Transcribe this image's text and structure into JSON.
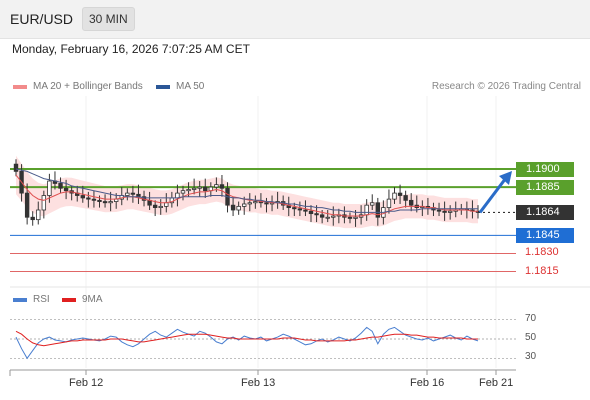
{
  "header": {
    "symbol": "EUR/USD",
    "timeframe": "30 MIN"
  },
  "datetime": "Monday, February 16, 2026 7:07:25 AM CET",
  "legend": [
    {
      "label": "MA 20 + Bollinger Bands",
      "color": "#f28b8b"
    },
    {
      "label": "MA 50",
      "color": "#2b5797"
    }
  ],
  "credit": "Research © 2026 Trading Central",
  "colors": {
    "resistance": "#5aa02c",
    "support": "#1f6ed4",
    "ma20": "#e05050",
    "ma50": "#4a5a8a",
    "band": "#fde0e0",
    "candle": "#333333",
    "arrow": "#2a6cc8"
  },
  "chart_data": [
    {
      "type": "line",
      "title": "",
      "price_range": [
        1.1808,
        1.1924
      ],
      "x_ticks": [
        "Feb 12",
        "Feb 13",
        "Feb 16",
        "Feb 21"
      ],
      "levels": [
        {
          "label": "1.1900",
          "value": 1.19,
          "kind": "resistance"
        },
        {
          "label": "1.1885",
          "value": 1.1885,
          "kind": "resistance"
        },
        {
          "label": "1.1864",
          "value": 1.1864,
          "kind": "last"
        },
        {
          "label": "1.1845",
          "value": 1.1845,
          "kind": "support"
        },
        {
          "label": "1.1830",
          "value": 1.183,
          "kind": "target"
        },
        {
          "label": "1.1815",
          "value": 1.1815,
          "kind": "target"
        }
      ],
      "close": [
        1.1898,
        1.188,
        1.186,
        1.1858,
        1.1866,
        1.1878,
        1.189,
        1.1888,
        1.1884,
        1.1882,
        1.188,
        1.1878,
        1.1876,
        1.1875,
        1.1874,
        1.1873,
        1.1872,
        1.1873,
        1.1875,
        1.1878,
        1.188,
        1.1879,
        1.1877,
        1.1874,
        1.187,
        1.1868,
        1.1869,
        1.1872,
        1.1876,
        1.188,
        1.1882,
        1.1883,
        1.1884,
        1.1885,
        1.1882,
        1.1885,
        1.1887,
        1.1884,
        1.187,
        1.1866,
        1.1869,
        1.1871,
        1.1872,
        1.1873,
        1.1872,
        1.1871,
        1.1872,
        1.1873,
        1.187,
        1.1868,
        1.1867,
        1.1866,
        1.1865,
        1.1863,
        1.1862,
        1.186,
        1.186,
        1.1861,
        1.1862,
        1.186,
        1.1859,
        1.186,
        1.1862,
        1.187,
        1.1872,
        1.186,
        1.1868,
        1.1875,
        1.188,
        1.1878,
        1.1874,
        1.187,
        1.1868,
        1.1869,
        1.1868,
        1.1866,
        1.1865,
        1.1864,
        1.1865,
        1.1866,
        1.1867,
        1.1866,
        1.1865,
        1.1864
      ],
      "series": [
        {
          "name": "MA 20 + Bollinger Bands",
          "values": [
            1.1895,
            1.1889,
            1.1883,
            1.1878,
            1.1875,
            1.1874,
            1.1876,
            1.1878,
            1.188,
            1.1881,
            1.1881,
            1.188,
            1.1879,
            1.1878,
            1.1877,
            1.1876,
            1.1875,
            1.1875,
            1.1875,
            1.1876,
            1.1877,
            1.1877,
            1.1876,
            1.1875,
            1.1874,
            1.1873,
            1.1872,
            1.1872,
            1.1873,
            1.1875,
            1.1877,
            1.1879,
            1.188,
            1.1881,
            1.1881,
            1.1882,
            1.1883,
            1.1882,
            1.1879,
            1.1877,
            1.1876,
            1.1875,
            1.1874,
            1.1874,
            1.1873,
            1.1873,
            1.1872,
            1.1872,
            1.1871,
            1.187,
            1.1869,
            1.1868,
            1.1867,
            1.1866,
            1.1865,
            1.1864,
            1.1863,
            1.1862,
            1.1862,
            1.1861,
            1.1861,
            1.1861,
            1.1861,
            1.1862,
            1.1863,
            1.1862,
            1.1863,
            1.1865,
            1.1867,
            1.1868,
            1.1869,
            1.1869,
            1.1869,
            1.1869,
            1.1868,
            1.1868,
            1.1867,
            1.1866,
            1.1866,
            1.1866,
            1.1866,
            1.1866,
            1.1865,
            1.1865
          ]
        },
        {
          "name": "MA 50",
          "values": [
            1.19,
            1.1899,
            1.1898,
            1.1896,
            1.1894,
            1.1892,
            1.1891,
            1.189,
            1.1889,
            1.1888,
            1.1886,
            1.1885,
            1.1884,
            1.1883,
            1.1882,
            1.1881,
            1.188,
            1.1879,
            1.1878,
            1.1878,
            1.1877,
            1.1877,
            1.1877,
            1.1876,
            1.1876,
            1.1876,
            1.1876,
            1.1876,
            1.1876,
            1.1876,
            1.1877,
            1.1877,
            1.1877,
            1.1877,
            1.1877,
            1.1878,
            1.1878,
            1.1878,
            1.1877,
            1.1876,
            1.1876,
            1.1875,
            1.1875,
            1.1874,
            1.1874,
            1.1873,
            1.1873,
            1.1872,
            1.1872,
            1.1871,
            1.1871,
            1.187,
            1.1869,
            1.1869,
            1.1868,
            1.1868,
            1.1867,
            1.1866,
            1.1866,
            1.1865,
            1.1865,
            1.1864,
            1.1864,
            1.1864,
            1.1864,
            1.1864,
            1.1864,
            1.1865,
            1.1865,
            1.1866,
            1.1866,
            1.1866,
            1.1866,
            1.1867,
            1.1867,
            1.1867,
            1.1867,
            1.1867,
            1.1867,
            1.1867,
            1.1867,
            1.1867,
            1.1867,
            1.1867
          ]
        }
      ]
    },
    {
      "type": "line",
      "title": "",
      "ylim": [
        20,
        80
      ],
      "y_ticks": [
        "70",
        "50",
        "30"
      ],
      "series": [
        {
          "name": "RSI",
          "color": "#4a7fd0",
          "values": [
            52,
            40,
            30,
            38,
            46,
            50,
            52,
            49,
            48,
            47,
            49,
            50,
            51,
            50,
            49,
            48,
            50,
            53,
            52,
            47,
            44,
            42,
            45,
            50,
            55,
            58,
            54,
            52,
            56,
            60,
            57,
            55,
            53,
            58,
            56,
            52,
            47,
            45,
            50,
            52,
            49,
            53,
            51,
            50,
            52,
            48,
            50,
            52,
            55,
            53,
            50,
            47,
            44,
            45,
            48,
            50,
            47,
            49,
            52,
            50,
            48,
            51,
            56,
            62,
            58,
            45,
            55,
            60,
            62,
            58,
            54,
            52,
            50,
            49,
            51,
            48,
            50,
            52,
            54,
            51,
            49,
            53,
            50,
            48
          ]
        },
        {
          "name": "9MA",
          "color": "#e02020",
          "values": [
            58,
            55,
            50,
            46,
            44,
            43,
            44,
            45,
            46,
            47,
            48,
            48,
            49,
            49,
            49,
            49,
            49,
            50,
            50,
            50,
            49,
            48,
            47,
            47,
            48,
            49,
            50,
            51,
            52,
            53,
            54,
            55,
            55,
            55,
            55,
            54,
            53,
            52,
            51,
            51,
            50,
            50,
            50,
            50,
            50,
            50,
            50,
            50,
            51,
            51,
            51,
            50,
            49,
            49,
            48,
            48,
            48,
            48,
            48,
            48,
            49,
            49,
            50,
            51,
            52,
            52,
            53,
            54,
            55,
            55,
            55,
            54,
            54,
            53,
            52,
            52,
            51,
            51,
            51,
            51,
            51,
            50,
            50,
            50
          ]
        }
      ]
    }
  ]
}
